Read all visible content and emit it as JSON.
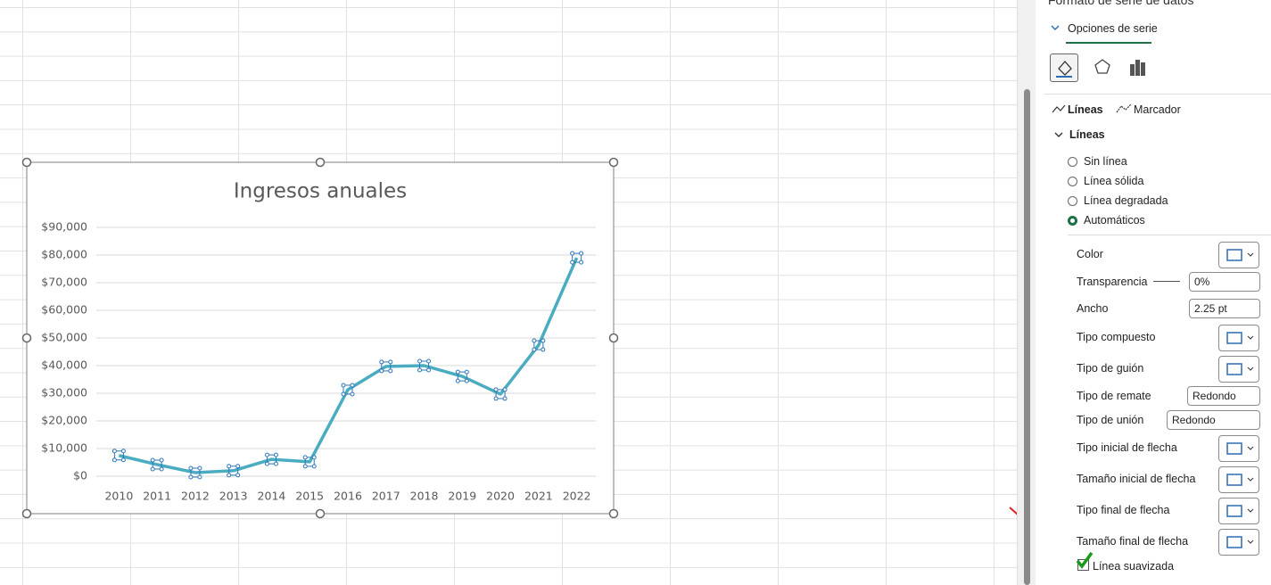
{
  "chart_data": {
    "type": "line",
    "title": "Ingresos anuales",
    "categories": [
      "2010",
      "2011",
      "2012",
      "2013",
      "2014",
      "2015",
      "2016",
      "2017",
      "2018",
      "2019",
      "2020",
      "2021",
      "2022"
    ],
    "series": [
      {
        "color": "#4aacc0",
        "values": [
          7500,
          4200,
          1300,
          2000,
          6100,
          5200,
          31300,
          39700,
          40000,
          36100,
          29700,
          47400,
          79000
        ]
      }
    ],
    "ylim": [
      0,
      90000
    ],
    "yticks": [
      {
        "value": 0,
        "label": "$0"
      },
      {
        "value": 10000,
        "label": "$10,000"
      },
      {
        "value": 20000,
        "label": "$20,000"
      },
      {
        "value": 30000,
        "label": "$30,000"
      },
      {
        "value": 40000,
        "label": "$40,000"
      },
      {
        "value": 50000,
        "label": "$50,000"
      },
      {
        "value": 60000,
        "label": "$60,000"
      },
      {
        "value": 70000,
        "label": "$70,000"
      },
      {
        "value": 80000,
        "label": "$80,000"
      },
      {
        "value": 90000,
        "label": "$90,000"
      }
    ],
    "grid": true
  },
  "panel": {
    "title": "Formato de serie de datos",
    "tab": "Opciones de serie",
    "subtabs": [
      "Líneas",
      "Marcador"
    ],
    "section": "Líneas",
    "options": [
      "Sin línea",
      "Línea sólida",
      "Línea degradada",
      "Automáticos"
    ],
    "properties": [
      "Color",
      "Transparencia",
      "Ancho",
      "Tipo compuesto",
      "Tipo de guión",
      "Tipo de remate",
      "Tipo de unión",
      "Tipo inicial de flecha",
      "Tamaño inicial de flecha",
      "Tipo final de flecha",
      "Tamaño final de flecha"
    ],
    "transparency": "0%",
    "width": "2.25 pt",
    "cap": "Redondo",
    "join": "Redondo",
    "smooth": "Línea suavizada"
  }
}
